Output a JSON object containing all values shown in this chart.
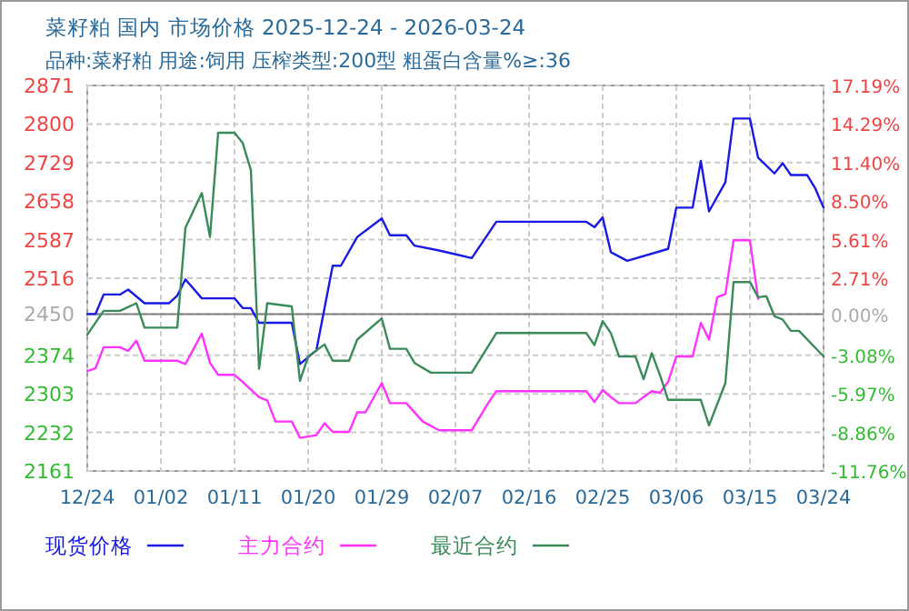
{
  "chart_data": {
    "type": "line",
    "title": "菜籽粕 国内 市场价格 2025-12-24 - 2026-03-24",
    "subtitle": "品种:菜籽粕 用途:饲用 压榨类型:200型 粗蛋白含量%≥:36",
    "xlim": [
      "2025-12-24",
      "2026-03-24"
    ],
    "xticks": [
      {
        "value": "2025-12-24",
        "label": "12/24"
      },
      {
        "value": "2026-01-02",
        "label": "01/02"
      },
      {
        "value": "2026-01-11",
        "label": "01/11"
      },
      {
        "value": "2026-01-20",
        "label": "01/20"
      },
      {
        "value": "2026-01-29",
        "label": "01/29"
      },
      {
        "value": "2026-02-07",
        "label": "02/07"
      },
      {
        "value": "2026-02-16",
        "label": "02/16"
      },
      {
        "value": "2026-02-25",
        "label": "02/25"
      },
      {
        "value": "2026-03-06",
        "label": "03/06"
      },
      {
        "value": "2026-03-15",
        "label": "03/15"
      },
      {
        "value": "2026-03-24",
        "label": "03/24"
      }
    ],
    "ylim": [
      2161,
      2871
    ],
    "yticks": [
      2871,
      2800,
      2729,
      2658,
      2587,
      2516,
      2450,
      2374,
      2303,
      2232,
      2161
    ],
    "y2lim": [
      -11.76,
      17.19
    ],
    "y2ticks": [
      {
        "value": 17.19,
        "label": "17.19%"
      },
      {
        "value": 14.29,
        "label": "14.29%"
      },
      {
        "value": 11.4,
        "label": "11.40%"
      },
      {
        "value": 8.5,
        "label": "8.50%"
      },
      {
        "value": 5.61,
        "label": "5.61%"
      },
      {
        "value": 2.71,
        "label": "2.71%"
      },
      {
        "value": 0,
        "label": "0.00%"
      },
      {
        "value": -3.08,
        "label": "-3.08%"
      },
      {
        "value": -5.97,
        "label": "-5.97%"
      },
      {
        "value": -8.86,
        "label": "-8.86%"
      },
      {
        "value": -11.76,
        "label": "-11.76%"
      }
    ],
    "grid": true,
    "legend": "bottom",
    "ref_lines": [
      {
        "axis": "y",
        "value": 2450,
        "color": "#808080"
      }
    ],
    "series": [
      {
        "name": "现货价格",
        "color": "#1a1ae6",
        "x": [
          "2025-12-24",
          "2025-12-25",
          "2025-12-26",
          "2025-12-28",
          "2025-12-29",
          "2025-12-31",
          "2026-01-03",
          "2026-01-04",
          "2026-01-05",
          "2026-01-07",
          "2026-01-11",
          "2026-01-12",
          "2026-01-13",
          "2026-01-14",
          "2026-01-18",
          "2026-01-19",
          "2026-01-21",
          "2026-01-23",
          "2026-01-24",
          "2026-01-26",
          "2026-01-29",
          "2026-01-30",
          "2026-02-01",
          "2026-02-02",
          "2026-02-05",
          "2026-02-09",
          "2026-02-12",
          "2026-02-23",
          "2026-02-24",
          "2026-02-25",
          "2026-02-26",
          "2026-02-28",
          "2026-03-05",
          "2026-03-06",
          "2026-03-08",
          "2026-03-09",
          "2026-03-10",
          "2026-03-12",
          "2026-03-13",
          "2026-03-15",
          "2026-03-16",
          "2026-03-18",
          "2026-03-19",
          "2026-03-20",
          "2026-03-22",
          "2026-03-23",
          "2026-03-24"
        ],
        "values": [
          2450,
          2450,
          2486,
          2486,
          2495,
          2470,
          2470,
          2484,
          2514,
          2479,
          2479,
          2461,
          2461,
          2434,
          2434,
          2358,
          2383,
          2539,
          2539,
          2592,
          2626,
          2595,
          2595,
          2576,
          2567,
          2553,
          2620,
          2620,
          2610,
          2628,
          2564,
          2548,
          2570,
          2646,
          2646,
          2732,
          2639,
          2693,
          2810,
          2810,
          2738,
          2709,
          2728,
          2706,
          2706,
          2681,
          2646
        ]
      },
      {
        "name": "主力合约",
        "color": "#ff33ff",
        "x": [
          "2025-12-24",
          "2025-12-25",
          "2025-12-26",
          "2025-12-28",
          "2025-12-29",
          "2025-12-30",
          "2025-12-31",
          "2026-01-04",
          "2026-01-05",
          "2026-01-07",
          "2026-01-08",
          "2026-01-09",
          "2026-01-11",
          "2026-01-12",
          "2026-01-14",
          "2026-01-15",
          "2026-01-16",
          "2026-01-18",
          "2026-01-19",
          "2026-01-21",
          "2026-01-22",
          "2026-01-23",
          "2026-01-25",
          "2026-01-26",
          "2026-01-27",
          "2026-01-29",
          "2026-01-30",
          "2026-02-01",
          "2026-02-03",
          "2026-02-05",
          "2026-02-09",
          "2026-02-11",
          "2026-02-12",
          "2026-02-23",
          "2026-02-24",
          "2026-02-25",
          "2026-02-26",
          "2026-02-27",
          "2026-03-01",
          "2026-03-03",
          "2026-03-04",
          "2026-03-05",
          "2026-03-06",
          "2026-03-08",
          "2026-03-09",
          "2026-03-10",
          "2026-03-11",
          "2026-03-12",
          "2026-03-13",
          "2026-03-15",
          "2026-03-16"
        ],
        "values": [
          2345,
          2350,
          2389,
          2389,
          2382,
          2401,
          2364,
          2364,
          2358,
          2414,
          2360,
          2338,
          2338,
          2325,
          2297,
          2291,
          2252,
          2252,
          2222,
          2227,
          2249,
          2233,
          2233,
          2269,
          2269,
          2323,
          2286,
          2286,
          2252,
          2236,
          2236,
          2286,
          2308,
          2308,
          2288,
          2310,
          2297,
          2286,
          2286,
          2308,
          2305,
          2325,
          2372,
          2372,
          2434,
          2403,
          2481,
          2487,
          2586,
          2586,
          2478
        ]
      },
      {
        "name": "最近合约",
        "color": "#3a8a5a",
        "x": [
          "2025-12-24",
          "2025-12-26",
          "2025-12-28",
          "2025-12-30",
          "2025-12-31",
          "2026-01-04",
          "2026-01-05",
          "2026-01-07",
          "2026-01-08",
          "2026-01-09",
          "2026-01-11",
          "2026-01-12",
          "2026-01-13",
          "2026-01-14",
          "2026-01-15",
          "2026-01-18",
          "2026-01-19",
          "2026-01-20",
          "2026-01-22",
          "2026-01-23",
          "2026-01-25",
          "2026-01-26",
          "2026-01-29",
          "2026-01-30",
          "2026-02-01",
          "2026-02-02",
          "2026-02-04",
          "2026-02-09",
          "2026-02-12",
          "2026-02-23",
          "2026-02-24",
          "2026-02-25",
          "2026-02-26",
          "2026-02-27",
          "2026-03-01",
          "2026-03-02",
          "2026-03-03",
          "2026-03-04",
          "2026-03-05",
          "2026-03-09",
          "2026-03-10",
          "2026-03-12",
          "2026-03-13",
          "2026-03-15",
          "2026-03-16",
          "2026-03-17",
          "2026-03-18",
          "2026-03-19",
          "2026-03-20",
          "2026-03-21",
          "2026-03-24"
        ],
        "values": [
          2412,
          2456,
          2456,
          2470,
          2425,
          2425,
          2609,
          2673,
          2592,
          2784,
          2784,
          2765,
          2715,
          2349,
          2470,
          2464,
          2327,
          2372,
          2394,
          2364,
          2364,
          2403,
          2442,
          2386,
          2386,
          2360,
          2342,
          2342,
          2415,
          2415,
          2393,
          2437,
          2415,
          2372,
          2372,
          2330,
          2378,
          2338,
          2292,
          2292,
          2245,
          2323,
          2509,
          2509,
          2481,
          2483,
          2446,
          2440,
          2419,
          2419,
          2372
        ]
      }
    ]
  }
}
